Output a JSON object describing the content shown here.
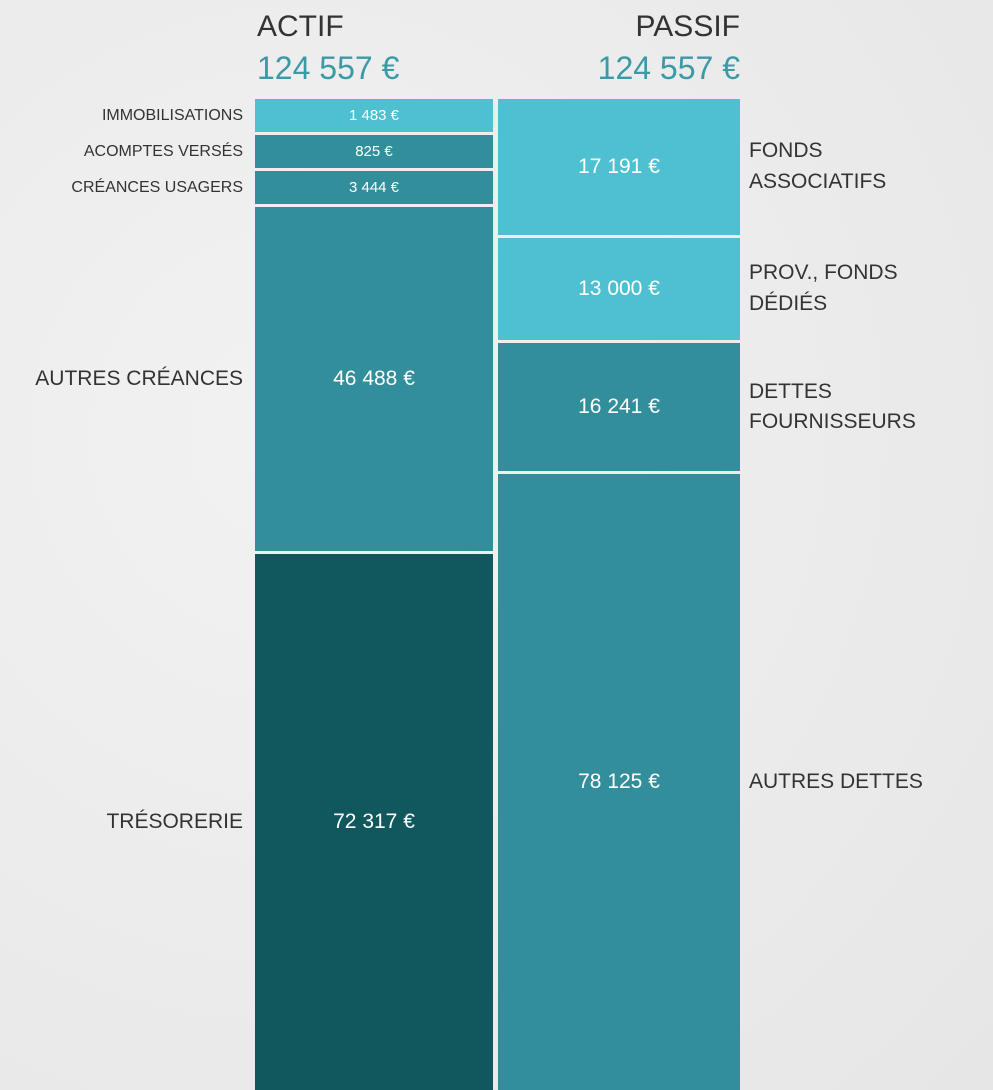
{
  "chart_data": {
    "type": "bar",
    "stacked": true,
    "series": [
      {
        "name": "ACTIF",
        "total": 124557,
        "total_label": "124 557 €",
        "label_side": "left",
        "categories": [
          "IMMOBILISATIONS",
          "ACOMPTES VERSÉS",
          "CRÉANCES USAGERS",
          "AUTRES CRÉANCES",
          "TRÉSORERIE"
        ],
        "values": [
          1483,
          825,
          3444,
          46488,
          72317
        ],
        "value_labels": [
          "1 483 €",
          "825 €",
          "3 444 €",
          "46 488 €",
          "72 317 €"
        ],
        "colors": [
          "#4fc0d1",
          "#338e9c",
          "#338e9c",
          "#338e9c",
          "#11585e"
        ]
      },
      {
        "name": "PASSIF",
        "total": 124557,
        "total_label": "124 557 €",
        "label_side": "right",
        "categories": [
          "FONDS ASSOCIATIFS",
          "PROV., FONDS DÉDIÉS",
          "DETTES FOURNISSEURS",
          "AUTRES DETTES"
        ],
        "values": [
          17191,
          13000,
          16241,
          78125
        ],
        "value_labels": [
          "17 191 €",
          "13 000 €",
          "16 241 €",
          "78 125 €"
        ],
        "colors": [
          "#4fc0d1",
          "#4fc0d1",
          "#338e9c",
          "#338e9c"
        ]
      }
    ]
  }
}
